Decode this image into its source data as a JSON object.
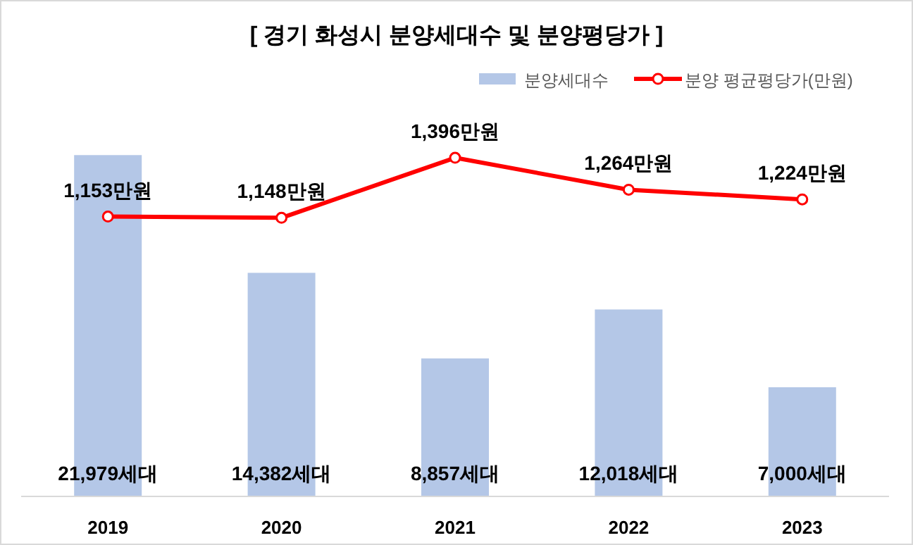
{
  "chart_data": {
    "type": "bar",
    "title": "[ 경기 화성시 분양세대수 및 분양평당가 ]",
    "categories": [
      "2019",
      "2020",
      "2021",
      "2022",
      "2023"
    ],
    "series": [
      {
        "name": "분양세대수",
        "color": "#b4c7e7",
        "values": [
          21979,
          14382,
          8857,
          12018,
          7000
        ],
        "value_labels": [
          "21,979세대",
          "14,382세대",
          "8,857세대",
          "12,018세대",
          "7,000세대"
        ]
      },
      {
        "name": "분양 평균평당가(만원)",
        "type": "line",
        "axis": "y2",
        "color": "#ff0000",
        "values": [
          1153,
          1148,
          1396,
          1264,
          1224
        ],
        "value_labels": [
          "1,153만원",
          "1,148만원",
          "1,396만원",
          "1,264만원",
          "1,224만원"
        ]
      }
    ],
    "marker": "circle",
    "legend": "top right",
    "tick_labels": "x"
  }
}
